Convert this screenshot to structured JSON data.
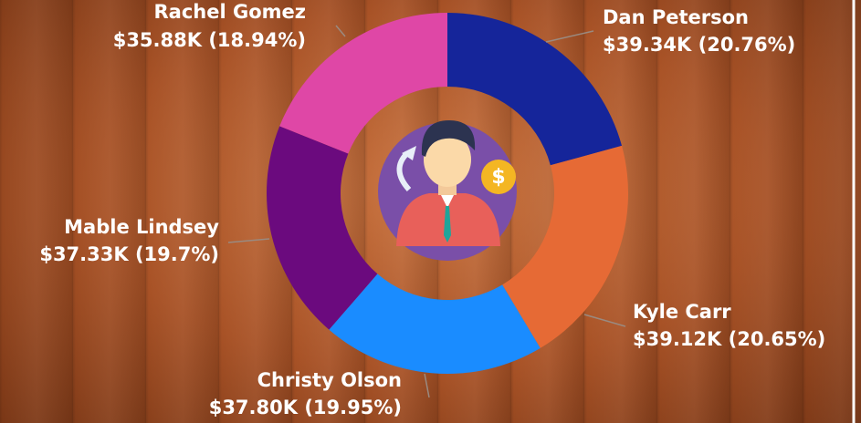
{
  "chart_data": {
    "type": "donut",
    "categories": [
      "Dan Peterson",
      "Kyle Carr",
      "Christy Olson",
      "Mable Lindsey",
      "Rachel Gomez"
    ],
    "values": [
      39.34,
      39.12,
      37.8,
      37.33,
      35.88
    ],
    "value_labels": [
      "$39.34K (20.76%)",
      "$39.12K (20.65%)",
      "$37.80K (19.95%)",
      "$37.33K (19.7%)",
      "$35.88K (18.94%)"
    ],
    "colors": [
      "#15259a",
      "#e66a35",
      "#1a8cff",
      "#6b0a7e",
      "#df47a6"
    ]
  }
}
